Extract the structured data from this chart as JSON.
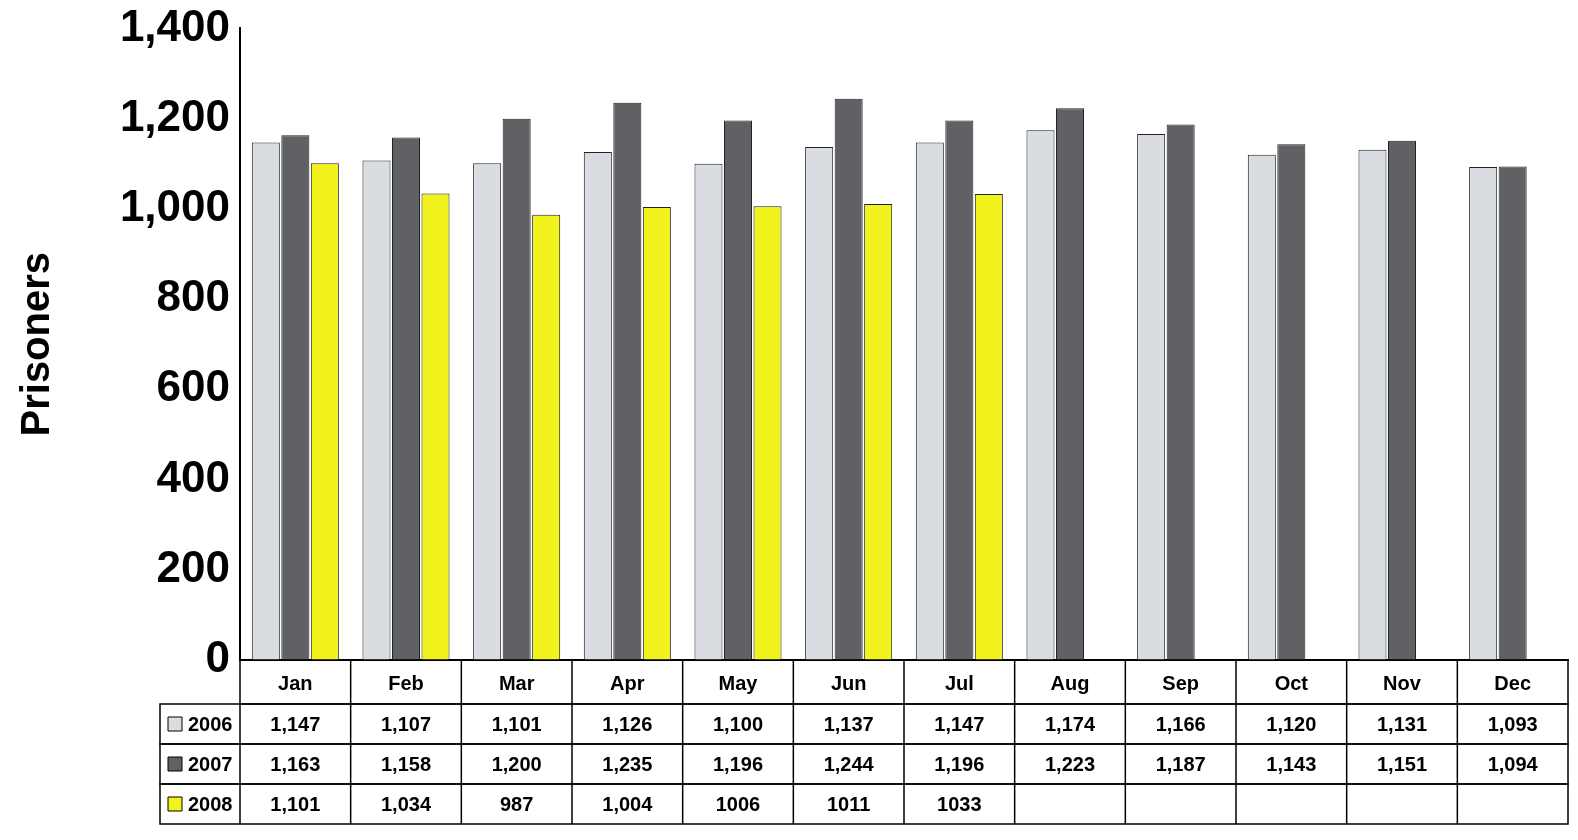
{
  "chart_data": {
    "type": "bar",
    "ylabel": "Prisoners",
    "categories": [
      "Jan",
      "Feb",
      "Mar",
      "Apr",
      "May",
      "Jun",
      "Jul",
      "Aug",
      "Sep",
      "Oct",
      "Nov",
      "Dec"
    ],
    "series": [
      {
        "name": "2006",
        "color": "#d9dde2",
        "values": [
          1147,
          1107,
          1101,
          1126,
          1100,
          1137,
          1147,
          1174,
          1166,
          1120,
          1131,
          1093
        ],
        "value_labels": [
          "1,147",
          "1,107",
          "1,101",
          "1,126",
          "1,100",
          "1,137",
          "1,147",
          "1,174",
          "1,166",
          "1,120",
          "1,131",
          "1,093"
        ]
      },
      {
        "name": "2007",
        "color": "#5f6164",
        "values": [
          1163,
          1158,
          1200,
          1235,
          1196,
          1244,
          1196,
          1223,
          1187,
          1143,
          1151,
          1094
        ],
        "value_labels": [
          "1,163",
          "1,158",
          "1,200",
          "1,235",
          "1,196",
          "1,244",
          "1,196",
          "1,223",
          "1,187",
          "1,143",
          "1,151",
          "1,094"
        ]
      },
      {
        "name": "2008",
        "color": "#f2f21c",
        "values": [
          1101,
          1034,
          987,
          1004,
          1006,
          1011,
          1033,
          null,
          null,
          null,
          null,
          null
        ],
        "value_labels": [
          "1,101",
          "1,034",
          "987",
          "1,004",
          "1006",
          "1011",
          "1033",
          null,
          null,
          null,
          null,
          null
        ]
      }
    ],
    "ylim": [
      0,
      1400
    ],
    "yticks": [
      {
        "value": 0,
        "label": "0"
      },
      {
        "value": 200,
        "label": "200"
      },
      {
        "value": 400,
        "label": "400"
      },
      {
        "value": 600,
        "label": "600"
      },
      {
        "value": 800,
        "label": "800"
      },
      {
        "value": 1000,
        "label": "1,000"
      },
      {
        "value": 1200,
        "label": "1,200"
      },
      {
        "value": 1400,
        "label": "1,400"
      }
    ],
    "grid": false,
    "legend": "bottom left"
  }
}
